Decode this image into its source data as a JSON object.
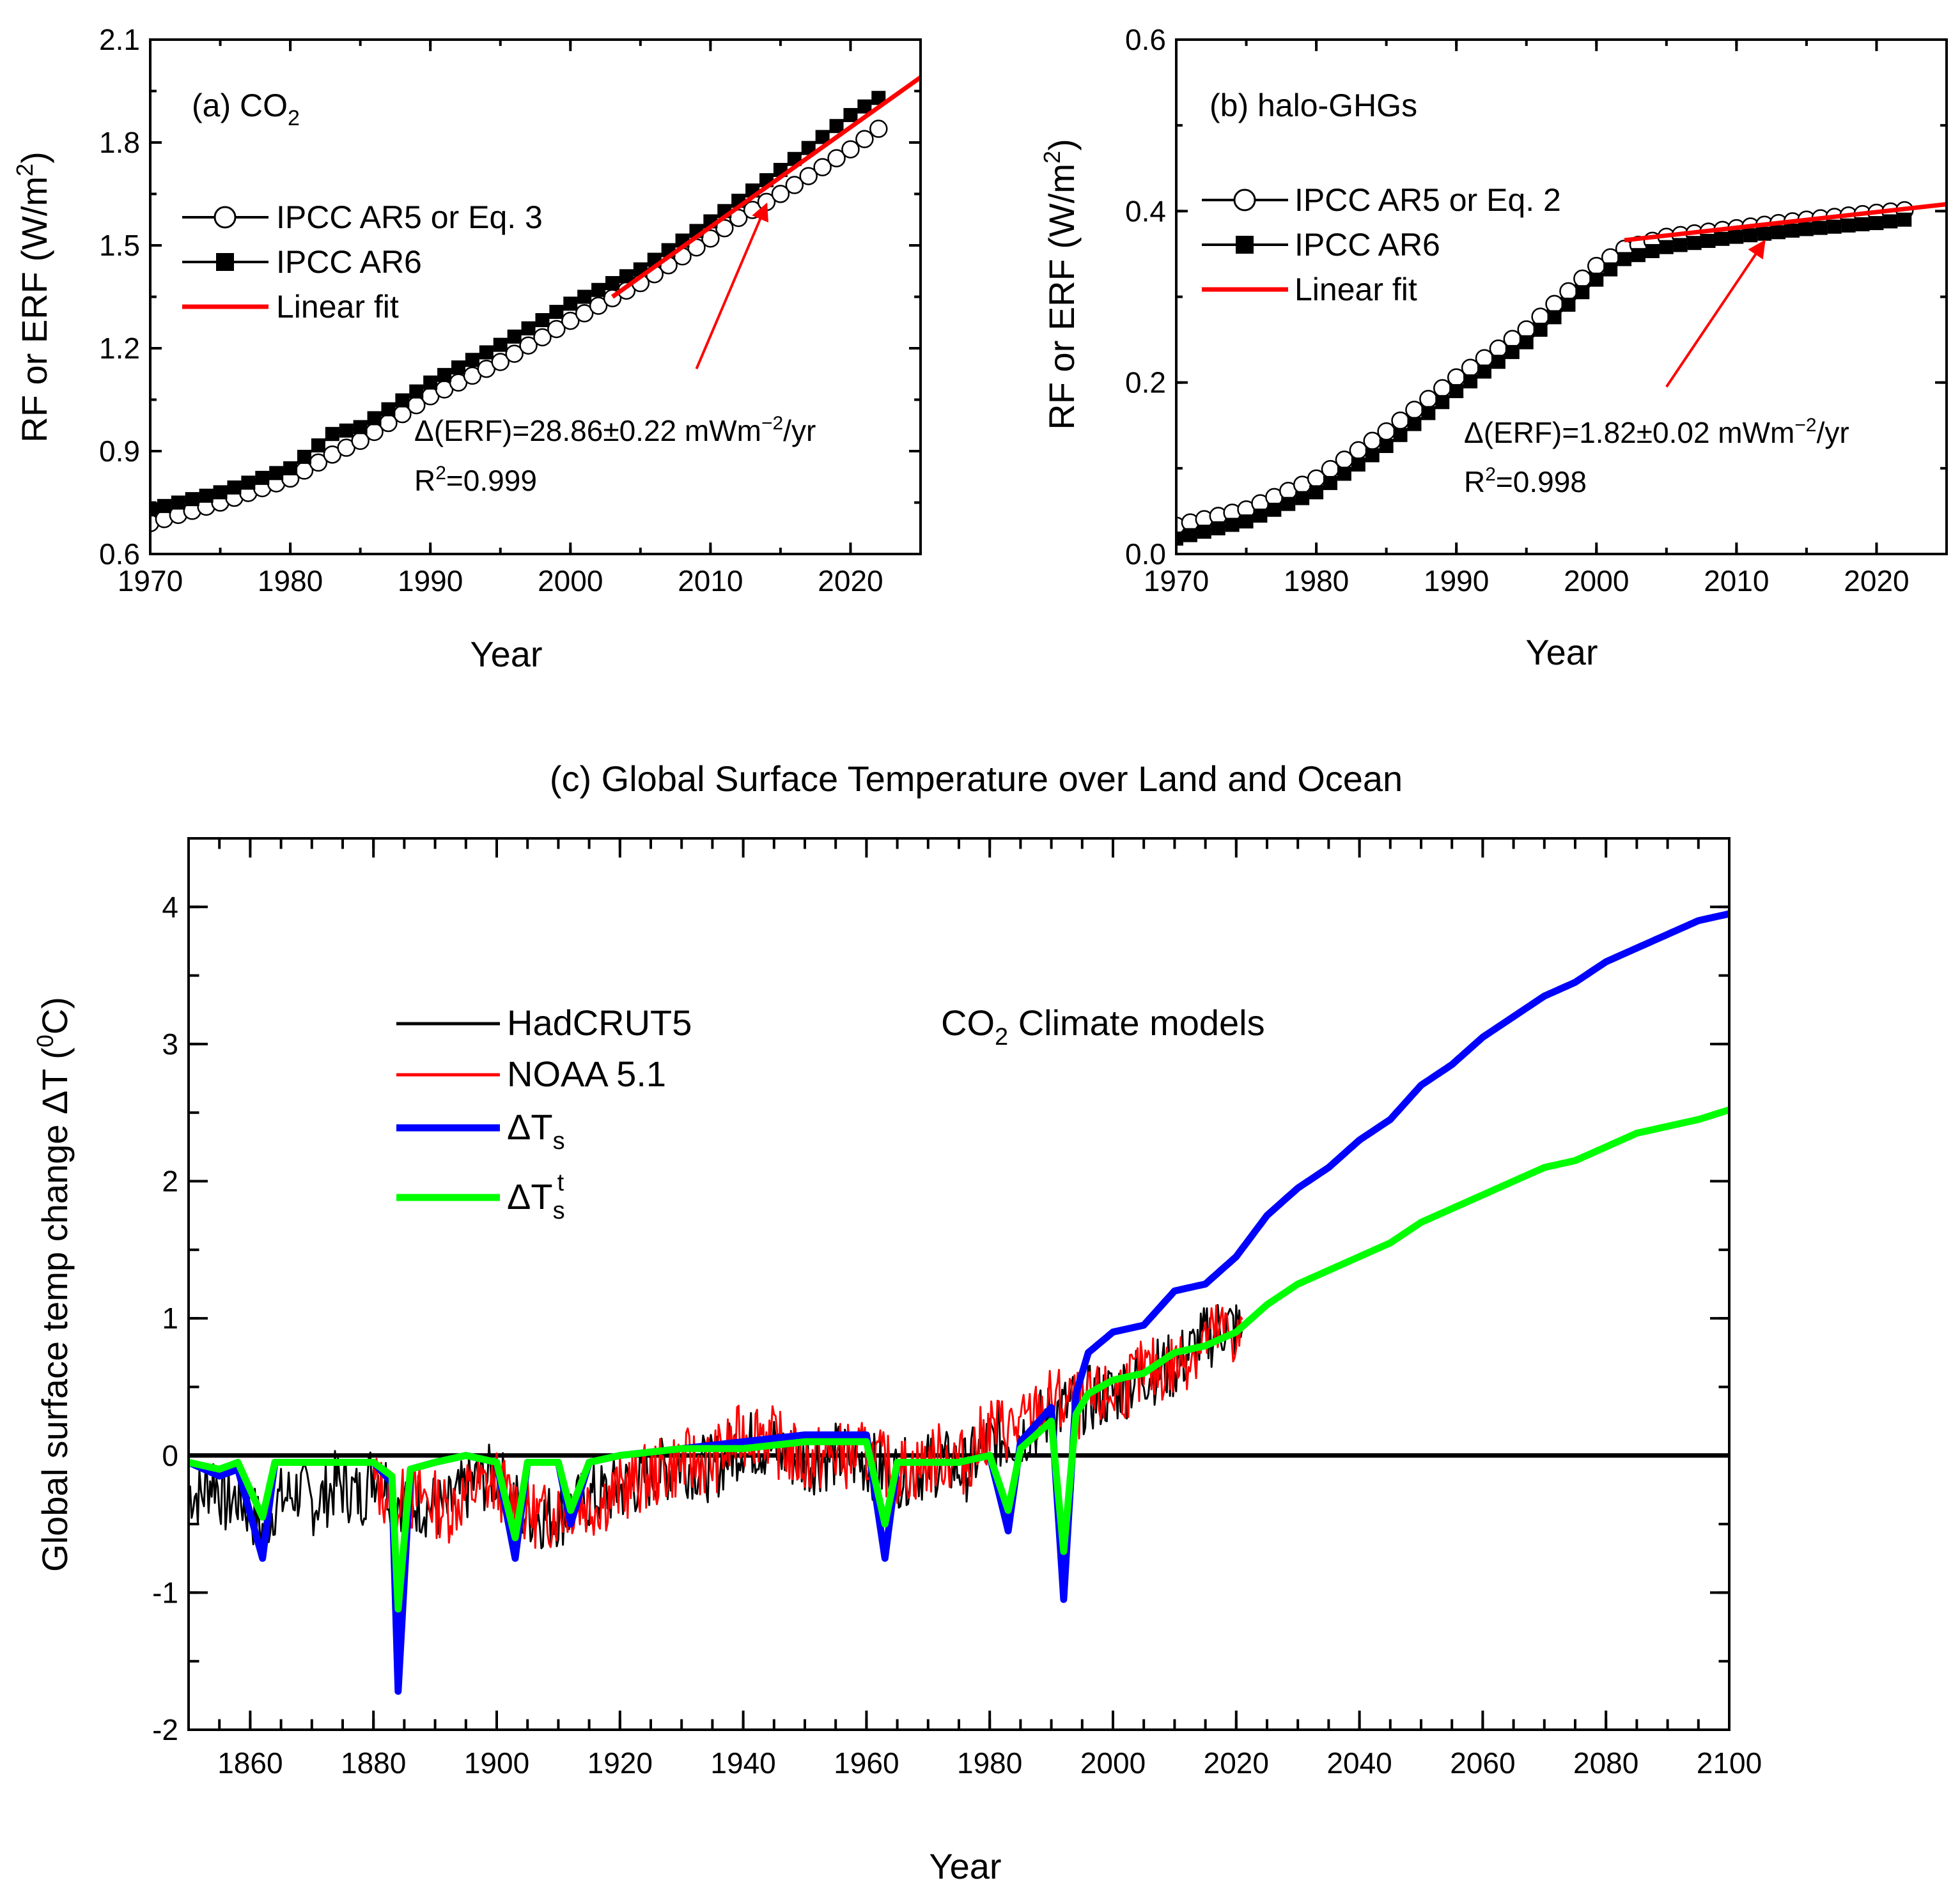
{
  "colors": {
    "black": "#000000",
    "red": "#ff0000",
    "blue": "#0000ff",
    "green": "#00ff00"
  },
  "chart_data": [
    {
      "id": "a",
      "type": "line",
      "title": "(a) CO",
      "title_sub": "2",
      "xlabel": "Year",
      "ylabel": "RF or ERF (W/m",
      "ylabel_sup": "2",
      "ylabel_end": ")",
      "xlim": [
        1970,
        2025
      ],
      "ylim": [
        0.6,
        2.1
      ],
      "xticks": [
        1970,
        1980,
        1990,
        2000,
        2010,
        2020
      ],
      "xticklabels": [
        "1970",
        "1980",
        "1990",
        "2000",
        "2010",
        "2020"
      ],
      "yticks": [
        0.6,
        0.9,
        1.2,
        1.5,
        1.8,
        2.1
      ],
      "yticklabels": [
        "0.6",
        "0.9",
        "1.2",
        "1.5",
        "1.8",
        "2.1"
      ],
      "legend": [
        "IPCC AR5 or Eq. 3",
        "IPCC AR6",
        "Linear fit"
      ],
      "annotation_line1": "Δ(ERF)=28.86±0.22 mWm",
      "annotation_line1_sup": "−2",
      "annotation_line1_end": "/yr",
      "annotation_line2": "R",
      "annotation_line2_sup": "2",
      "annotation_line2_end": "=0.999",
      "arrow": {
        "from": [
          2009,
          1.14
        ],
        "to": [
          2014,
          1.62
        ]
      },
      "series": [
        {
          "name": "IPCC AR5 or Eq. 3",
          "marker": "open-circle",
          "x": [
            1970,
            1975,
            1980,
            1983,
            1985,
            1990,
            1995,
            2000,
            2005,
            2010,
            2012,
            2015,
            2020,
            2022
          ],
          "y": [
            0.69,
            0.75,
            0.82,
            0.89,
            0.93,
            1.06,
            1.16,
            1.28,
            1.39,
            1.52,
            1.58,
            1.65,
            1.78,
            1.84
          ]
        },
        {
          "name": "IPCC AR6",
          "marker": "filled-square",
          "x": [
            1970,
            1975,
            1980,
            1983,
            1985,
            1990,
            1995,
            2000,
            2005,
            2010,
            2015,
            2020,
            2022
          ],
          "y": [
            0.73,
            0.78,
            0.85,
            0.95,
            0.97,
            1.1,
            1.21,
            1.33,
            1.43,
            1.57,
            1.72,
            1.88,
            1.93
          ]
        },
        {
          "name": "Linear fit",
          "marker": "none",
          "x": [
            2003,
            2025
          ],
          "y": [
            1.35,
            1.99
          ]
        }
      ]
    },
    {
      "id": "b",
      "type": "line",
      "title": "(b) halo-GHGs",
      "xlabel": "Year",
      "ylabel": "RF or ERF (W/m",
      "ylabel_sup": "2",
      "ylabel_end": ")",
      "xlim": [
        1970,
        2025
      ],
      "ylim": [
        0.0,
        0.6
      ],
      "xticks": [
        1970,
        1980,
        1990,
        2000,
        2010,
        2020
      ],
      "xticklabels": [
        "1970",
        "1980",
        "1990",
        "2000",
        "2010",
        "2020"
      ],
      "yticks": [
        0.0,
        0.2,
        0.4,
        0.6
      ],
      "yticklabels": [
        "0.0",
        "0.2",
        "0.4",
        "0.6"
      ],
      "legend": [
        "IPCC AR5 or Eq. 2",
        "IPCC AR6",
        "Linear fit"
      ],
      "annotation_line1": "Δ(ERF)=1.82±0.02 mWm",
      "annotation_line1_sup": "−2",
      "annotation_line1_end": "/yr",
      "annotation_line2": "R",
      "annotation_line2_sup": "2",
      "annotation_line2_end": "=0.998",
      "arrow": {
        "from": [
          2005,
          0.195
        ],
        "to": [
          2012,
          0.365
        ]
      },
      "series": [
        {
          "name": "IPCC AR5 or Eq. 2",
          "marker": "open-circle",
          "x": [
            1970,
            1975,
            1980,
            1985,
            1990,
            1995,
            2000,
            2002,
            2005,
            2010,
            2015,
            2020,
            2022
          ],
          "y": [
            0.033,
            0.052,
            0.088,
            0.143,
            0.206,
            0.262,
            0.336,
            0.356,
            0.37,
            0.38,
            0.39,
            0.398,
            0.401
          ]
        },
        {
          "name": "IPCC AR6",
          "marker": "filled-square",
          "x": [
            1970,
            1975,
            1980,
            1985,
            1990,
            1995,
            2000,
            2002,
            2005,
            2010,
            2015,
            2020,
            2022
          ],
          "y": [
            0.018,
            0.038,
            0.072,
            0.126,
            0.19,
            0.247,
            0.32,
            0.344,
            0.358,
            0.37,
            0.379,
            0.386,
            0.39
          ]
        },
        {
          "name": "Linear fit",
          "marker": "none",
          "x": [
            2002,
            2025
          ],
          "y": [
            0.366,
            0.408
          ]
        }
      ]
    },
    {
      "id": "c",
      "type": "line",
      "title": "(c) Global Surface Temperature over Land and Ocean",
      "xlabel": "Year",
      "ylabel": "Global surface temp change ΔT (",
      "ylabel_sup": "0",
      "ylabel_end": "C)",
      "xlim": [
        1850,
        2100
      ],
      "ylim": [
        -2,
        4.5
      ],
      "xticks": [
        1860,
        1880,
        1900,
        1920,
        1940,
        1960,
        1980,
        2000,
        2020,
        2040,
        2060,
        2080,
        2100
      ],
      "xticklabels": [
        "1860",
        "1880",
        "1900",
        "1920",
        "1940",
        "1960",
        "1980",
        "2000",
        "2020",
        "2040",
        "2060",
        "2080",
        "2100"
      ],
      "yticks": [
        -2,
        -1,
        0,
        1,
        2,
        3,
        4
      ],
      "yticklabels": [
        "-2",
        "-1",
        "0",
        "1",
        "2",
        "3",
        "4"
      ],
      "legend": [
        "HadCRUT5",
        "NOAA 5.1",
        "ΔT",
        "ΔT"
      ],
      "legend_subs": [
        "",
        "",
        "s",
        "s"
      ],
      "legend_sups": [
        "",
        "",
        "",
        "t"
      ],
      "annotation": "CO",
      "annotation_sub": "2",
      "annotation_end": " Climate models",
      "series": [
        {
          "name": "HadCRUT5",
          "color": "black",
          "x": [
            1850,
            1852,
            1854,
            1856,
            1858,
            1860,
            1862,
            1864,
            1866,
            1868,
            1870,
            1872,
            1874,
            1876,
            1878,
            1880,
            1884,
            1888,
            1892,
            1896,
            1900,
            1904,
            1908,
            1912,
            1916,
            1920,
            1925,
            1930,
            1935,
            1940,
            1945,
            1950,
            1955,
            1960,
            1964,
            1968,
            1972,
            1976,
            1980,
            1985,
            1990,
            1995,
            2000,
            2005,
            2010,
            2015,
            2018,
            2021
          ],
          "y": [
            -0.25,
            -0.3,
            -0.15,
            -0.35,
            -0.3,
            -0.4,
            -0.55,
            -0.35,
            -0.3,
            -0.25,
            -0.35,
            -0.3,
            -0.2,
            -0.25,
            -0.3,
            -0.1,
            -0.3,
            -0.35,
            -0.4,
            -0.2,
            -0.15,
            -0.4,
            -0.45,
            -0.4,
            -0.3,
            -0.25,
            -0.15,
            -0.05,
            -0.1,
            0.1,
            0.05,
            -0.05,
            0.0,
            -0.05,
            -0.15,
            -0.1,
            -0.05,
            -0.1,
            0.1,
            0.15,
            0.3,
            0.4,
            0.45,
            0.6,
            0.65,
            0.85,
            0.95,
            0.9
          ]
        },
        {
          "name": "NOAA 5.1",
          "color": "red",
          "x": [
            1880,
            1884,
            1888,
            1892,
            1896,
            1900,
            1904,
            1908,
            1912,
            1916,
            1920,
            1925,
            1930,
            1935,
            1940,
            1943,
            1945,
            1950,
            1955,
            1960,
            1964,
            1968,
            1972,
            1976,
            1980,
            1985,
            1990,
            1995,
            2000,
            2005,
            2010,
            2015,
            2018,
            2021
          ],
          "y": [
            -0.2,
            -0.35,
            -0.3,
            -0.4,
            -0.25,
            -0.2,
            -0.4,
            -0.45,
            -0.35,
            -0.35,
            -0.25,
            -0.15,
            -0.05,
            -0.05,
            0.15,
            0.2,
            0.1,
            -0.05,
            0.0,
            0.0,
            -0.1,
            -0.1,
            0.0,
            -0.05,
            0.2,
            0.2,
            0.4,
            0.35,
            0.45,
            0.6,
            0.65,
            0.85,
            0.9,
            0.85
          ]
        },
        {
          "name": "ΔTs",
          "color": "blue",
          "x": [
            1850,
            1855,
            1858,
            1862,
            1864,
            1870,
            1880,
            1883,
            1884,
            1886,
            1890,
            1895,
            1900,
            1903,
            1905,
            1910,
            1912,
            1915,
            1920,
            1930,
            1940,
            1950,
            1960,
            1963,
            1965,
            1970,
            1975,
            1980,
            1983,
            1985,
            1990,
            1992,
            1994,
            1996,
            2000,
            2005,
            2010,
            2015,
            2020,
            2025,
            2030,
            2035,
            2040,
            2045,
            2050,
            2055,
            2060,
            2065,
            2070,
            2075,
            2080,
            2085,
            2090,
            2095,
            2100
          ],
          "y": [
            -0.05,
            -0.15,
            -0.1,
            -0.75,
            -0.05,
            -0.05,
            -0.05,
            -0.2,
            -1.72,
            -0.1,
            -0.05,
            0.0,
            -0.05,
            -0.75,
            -0.05,
            -0.05,
            -0.5,
            -0.05,
            0.0,
            0.05,
            0.1,
            0.15,
            0.15,
            -0.75,
            -0.05,
            -0.05,
            -0.05,
            0.0,
            -0.55,
            0.1,
            0.35,
            -1.05,
            0.45,
            0.75,
            0.9,
            0.95,
            1.2,
            1.25,
            1.45,
            1.75,
            1.95,
            2.1,
            2.3,
            2.45,
            2.7,
            2.85,
            3.05,
            3.2,
            3.35,
            3.45,
            3.6,
            3.7,
            3.8,
            3.9,
            3.95
          ]
        },
        {
          "name": "ΔTs^t",
          "color": "green",
          "x": [
            1850,
            1855,
            1858,
            1862,
            1864,
            1870,
            1880,
            1883,
            1884,
            1886,
            1890,
            1895,
            1900,
            1903,
            1905,
            1910,
            1912,
            1915,
            1920,
            1930,
            1940,
            1950,
            1960,
            1963,
            1965,
            1970,
            1975,
            1980,
            1983,
            1985,
            1990,
            1992,
            1994,
            1996,
            2000,
            2005,
            2010,
            2015,
            2020,
            2025,
            2030,
            2035,
            2040,
            2045,
            2050,
            2055,
            2060,
            2065,
            2070,
            2075,
            2080,
            2085,
            2090,
            2095,
            2100
          ],
          "y": [
            -0.05,
            -0.1,
            -0.05,
            -0.45,
            -0.05,
            -0.05,
            -0.05,
            -0.15,
            -1.12,
            -0.1,
            -0.05,
            0.0,
            -0.05,
            -0.6,
            -0.05,
            -0.05,
            -0.4,
            -0.05,
            0.0,
            0.05,
            0.05,
            0.1,
            0.1,
            -0.5,
            -0.05,
            -0.05,
            -0.05,
            0.0,
            -0.4,
            0.05,
            0.25,
            -0.7,
            0.3,
            0.45,
            0.55,
            0.6,
            0.75,
            0.8,
            0.9,
            1.1,
            1.25,
            1.35,
            1.45,
            1.55,
            1.7,
            1.8,
            1.9,
            2.0,
            2.1,
            2.15,
            2.25,
            2.35,
            2.4,
            2.45,
            2.52
          ]
        }
      ]
    }
  ]
}
